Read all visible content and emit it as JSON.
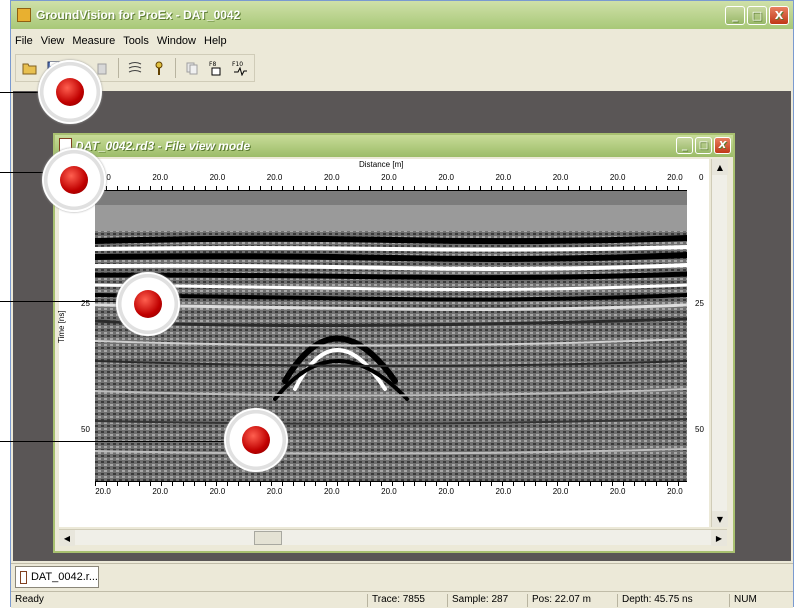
{
  "app": {
    "title": "GroundVision for ProEx - DAT_0042",
    "window_buttons": {
      "minimize": "_",
      "maximize": "□",
      "close": "X"
    }
  },
  "menu": [
    "File",
    "View",
    "Measure",
    "Tools",
    "Window",
    "Help"
  ],
  "toolbar": {
    "icons": [
      "open-folder-icon",
      "save-icon",
      "print-icon",
      "delete-icon",
      "scan-icon",
      "probe-icon",
      "copy-icon",
      "f8-icon",
      "f10-icon"
    ],
    "labels": {
      "f8": "F8",
      "f10": "F10"
    }
  },
  "child_window": {
    "title": "DAT_0042.rd3 - File view mode",
    "xlabel": "Distance [m]",
    "ylabel": "Time [ns]",
    "top_ticks": [
      "20.0",
      "20.0",
      "20.0",
      "20.0",
      "20.0",
      "20.0",
      "20.0",
      "20.0",
      "20.0",
      "20.0",
      "20.0"
    ],
    "bottom_ticks": [
      "20.0",
      "20.0",
      "20.0",
      "20.0",
      "20.0",
      "20.0",
      "20.0",
      "20.0",
      "20.0",
      "20.0",
      "20.0"
    ],
    "y_ticks": [
      "0",
      "25",
      "50"
    ]
  },
  "tab": {
    "label": "DAT_0042.r..."
  },
  "status": {
    "ready": "Ready",
    "trace": "Trace: 7855",
    "sample": "Sample: 287",
    "pos": "Pos:  22.07 m",
    "depth": "Depth:  45.75 ns",
    "num": "NUM"
  },
  "colors": {
    "marker": "#e01010",
    "hotspot": "#c00000",
    "mdi_background": "#5a5656"
  }
}
